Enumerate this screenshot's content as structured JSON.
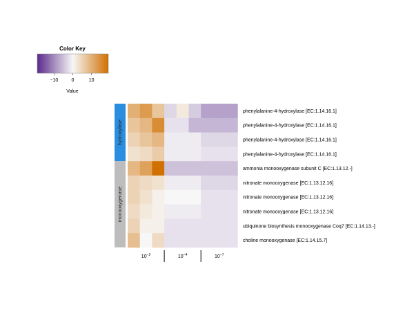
{
  "chart_data": {
    "type": "heatmap",
    "color_key": {
      "title": "Color Key",
      "xlabel": "Value",
      "ticks": [
        -10,
        0,
        10
      ],
      "range": [
        -19,
        19
      ],
      "colors": {
        "low": "#5a2a8a",
        "mid": "#f7f7f7",
        "high": "#d07000"
      }
    },
    "columns": [
      {
        "block": 0
      },
      {
        "block": 0
      },
      {
        "block": 0
      },
      {
        "block": 1
      },
      {
        "block": 1
      },
      {
        "block": 1
      },
      {
        "block": 2
      },
      {
        "block": 2
      },
      {
        "block": 2
      }
    ],
    "column_blocks": [
      {
        "label": "10⁻²",
        "label_base": "10",
        "label_exp": "-2"
      },
      {
        "label": "10⁻⁴",
        "label_base": "10",
        "label_exp": "-4"
      },
      {
        "label": "10⁻⁷",
        "label_base": "10",
        "label_exp": "-7"
      }
    ],
    "row_groups": [
      {
        "label": "hydroxylase",
        "rows": 4,
        "color": "#2b8de0"
      },
      {
        "label": "monooxygenase",
        "rows": 6,
        "color": "#bdbdbd"
      }
    ],
    "rows": [
      "phenylalanine-4-hydroxylase [EC:1.14.16.1]",
      "phenylalanine-4-hydroxylase [EC:1.14.16.1]",
      "phenylalanine-4-hydroxylase [EC:1.14.16.1]",
      "phenylalanine-4-hydroxylase [EC:1.14.16.1]",
      "ammonia monooxygenase subunit C [EC:1.13.12.-]",
      "nitronate monooxygenase [EC:1.13.12.16]",
      "nitronate monooxygenase [EC:1.13.12.16]",
      "nitronate monooxygenase [EC:1.13.12.16]",
      "ubiquinone biosynthesis monooxygenase Coq7 [EC:1.14.13.-]",
      "choline monooxygenase [EC:1.14.15.7]"
    ],
    "values": [
      [
        10,
        13,
        7,
        -3,
        2,
        -4,
        -8,
        -8,
        -8
      ],
      [
        7,
        9,
        15,
        -2,
        -2,
        -6,
        -6,
        -6,
        -6
      ],
      [
        5,
        7,
        9,
        -1,
        -1,
        -1,
        -3,
        -3,
        -3
      ],
      [
        3,
        4,
        6,
        -1,
        -1,
        -1,
        -2,
        -2,
        -2
      ],
      [
        9,
        12,
        19,
        -5,
        -5,
        -5,
        -5,
        -5,
        -5
      ],
      [
        5,
        4,
        3,
        -1,
        -1,
        -1,
        -3,
        -3,
        -3
      ],
      [
        5,
        3,
        1,
        0,
        0,
        0,
        -2,
        -2,
        -2
      ],
      [
        4,
        2,
        1,
        -1,
        -1,
        -1,
        -2,
        -2,
        -2
      ],
      [
        5,
        1,
        1,
        -2,
        -2,
        -2,
        -2,
        -2,
        -2
      ],
      [
        8,
        0,
        4,
        -2,
        -2,
        -2,
        -2,
        -2,
        -2
      ]
    ]
  }
}
